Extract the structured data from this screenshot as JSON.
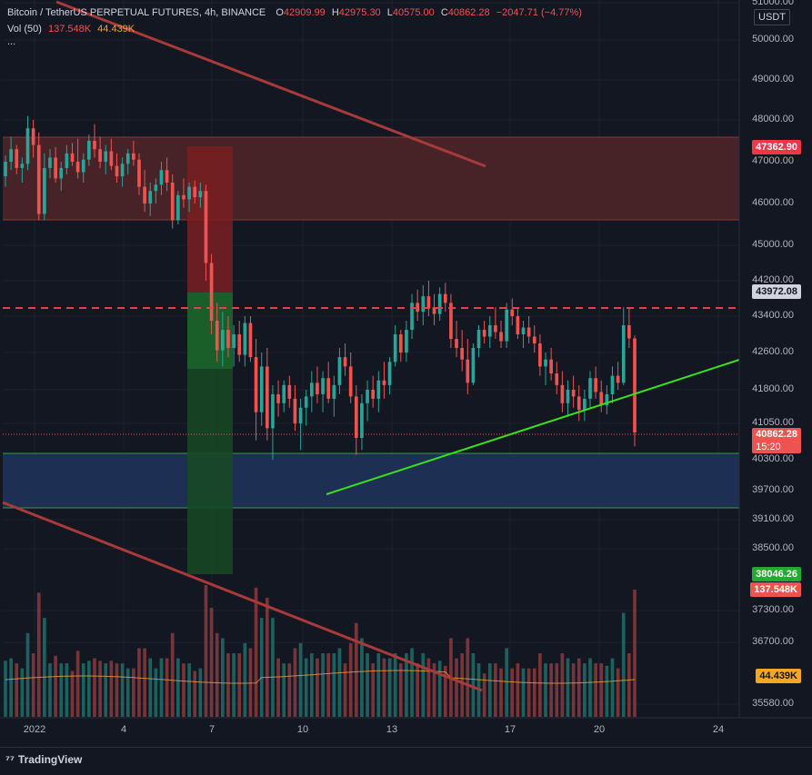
{
  "header": {
    "symbol": "Bitcoin / TetherUS PERPETUAL FUTURES, 4h, BINANCE",
    "o_label": "O",
    "o_value": "42909.99",
    "h_label": "H",
    "h_value": "42975.30",
    "l_label": "L",
    "l_value": "40575.00",
    "c_label": "C",
    "c_value": "40862.28",
    "change": "−2047.71 (−4.77%)",
    "vol_label": "Vol (50)",
    "vol_value": "137.548K",
    "vol_ma": "44.439K",
    "more": "..."
  },
  "currency": "USDT",
  "price_labels": {
    "zone_top": "47362.90",
    "dashed_level": "43972.08",
    "last_price": "40862.28",
    "countdown": "15:20",
    "target": "38046.26",
    "volume": "137.548K",
    "volume_ma": "44.439K"
  },
  "footer": {
    "brand": "TradingView",
    "logo_icon": "tradingview-logo-icon"
  },
  "colors": {
    "background": "#131722",
    "up": "#26a69a",
    "down": "#ef5350",
    "resistance_zone": "#5a2a2f",
    "support_zone": "#1f3358",
    "trendline_green": "#3ce01a",
    "trendline_red": "#a83a3a"
  },
  "chart_data": {
    "type": "candlestick",
    "title": "Bitcoin / TetherUS PERPETUAL FUTURES, 4h, BINANCE",
    "y_ticks": [
      "51000.00",
      "50000.00",
      "49000.00",
      "48000.00",
      "47000.00",
      "46000.00",
      "45000.00",
      "44200.00",
      "43400.00",
      "42600.00",
      "41800.00",
      "41050.00",
      "40300.00",
      "39700.00",
      "39100.00",
      "38500.00",
      "37300.00",
      "36700.00",
      "35580.00"
    ],
    "x_ticks": [
      "2022",
      "4",
      "7",
      "10",
      "13",
      "17",
      "20",
      "24"
    ],
    "ylim": [
      35400,
      51100
    ],
    "candles": [
      [
        46650,
        47150,
        46400,
        47000
      ],
      [
        47000,
        47600,
        46800,
        47300
      ],
      [
        47300,
        47400,
        46700,
        46850
      ],
      [
        46850,
        47100,
        46500,
        46950
      ],
      [
        46950,
        48100,
        46800,
        47800
      ],
      [
        47800,
        48000,
        47100,
        47400
      ],
      [
        47400,
        47700,
        45600,
        45750
      ],
      [
        45750,
        47200,
        45600,
        46850
      ],
      [
        46850,
        47300,
        46600,
        47100
      ],
      [
        47100,
        47350,
        46500,
        46600
      ],
      [
        46600,
        47000,
        46300,
        46850
      ],
      [
        46850,
        47400,
        46700,
        47200
      ],
      [
        47200,
        47450,
        46900,
        47000
      ],
      [
        47000,
        47550,
        46600,
        46750
      ],
      [
        46750,
        47200,
        46500,
        47050
      ],
      [
        47050,
        47650,
        46900,
        47500
      ],
      [
        47500,
        47900,
        47100,
        47300
      ],
      [
        47300,
        47600,
        46850,
        47000
      ],
      [
        47000,
        47400,
        46700,
        47250
      ],
      [
        47250,
        47550,
        46800,
        46900
      ],
      [
        46900,
        47200,
        46500,
        46650
      ],
      [
        46650,
        47100,
        46400,
        46950
      ],
      [
        46950,
        47300,
        46700,
        47200
      ],
      [
        47200,
        47500,
        46900,
        47050
      ],
      [
        47050,
        47200,
        46200,
        46400
      ],
      [
        46400,
        46800,
        45800,
        46000
      ],
      [
        46000,
        46500,
        45700,
        46300
      ],
      [
        46300,
        46600,
        46000,
        46450
      ],
      [
        46450,
        47000,
        46200,
        46800
      ],
      [
        46800,
        47100,
        46300,
        46500
      ],
      [
        46500,
        46700,
        45400,
        45600
      ],
      [
        45600,
        46300,
        45500,
        46200
      ],
      [
        46200,
        46600,
        45900,
        46100
      ],
      [
        46100,
        46500,
        45800,
        46400
      ],
      [
        46400,
        46550,
        46000,
        46150
      ],
      [
        46150,
        46500,
        45900,
        46300
      ],
      [
        46300,
        46450,
        44200,
        44600
      ],
      [
        44600,
        44800,
        43000,
        43300
      ],
      [
        43300,
        43700,
        42400,
        42650
      ],
      [
        42650,
        43500,
        42300,
        43100
      ],
      [
        43100,
        43400,
        42500,
        42700
      ],
      [
        42700,
        43200,
        42300,
        43000
      ],
      [
        43000,
        43300,
        42400,
        42550
      ],
      [
        42550,
        43400,
        42300,
        43250
      ],
      [
        43250,
        43400,
        42400,
        42500
      ],
      [
        42500,
        42900,
        40700,
        41300
      ],
      [
        41300,
        42600,
        41000,
        42300
      ],
      [
        42300,
        42700,
        40700,
        40950
      ],
      [
        40950,
        41900,
        40300,
        41700
      ],
      [
        41700,
        42000,
        41200,
        41500
      ],
      [
        41500,
        42000,
        41300,
        41900
      ],
      [
        41900,
        42100,
        41400,
        41600
      ],
      [
        41600,
        41900,
        40900,
        41050
      ],
      [
        41050,
        41600,
        40500,
        41400
      ],
      [
        41400,
        41800,
        41000,
        41650
      ],
      [
        41650,
        42200,
        41300,
        41950
      ],
      [
        41950,
        42300,
        41500,
        41700
      ],
      [
        41700,
        42200,
        41300,
        42050
      ],
      [
        42050,
        42400,
        41500,
        41600
      ],
      [
        41600,
        42100,
        41200,
        41900
      ],
      [
        41900,
        42700,
        41700,
        42500
      ],
      [
        42500,
        42800,
        42100,
        42300
      ],
      [
        42300,
        42600,
        41500,
        41650
      ],
      [
        41650,
        41900,
        40400,
        40750
      ],
      [
        40750,
        41700,
        40500,
        41500
      ],
      [
        41500,
        42000,
        41100,
        41800
      ],
      [
        41800,
        42100,
        41400,
        41600
      ],
      [
        41600,
        42200,
        41300,
        42000
      ],
      [
        42000,
        42400,
        41600,
        41900
      ],
      [
        41900,
        42500,
        41700,
        42400
      ],
      [
        42400,
        43200,
        42300,
        43000
      ],
      [
        43000,
        43100,
        42400,
        42600
      ],
      [
        42600,
        43300,
        42400,
        43100
      ],
      [
        43100,
        43900,
        42900,
        43700
      ],
      [
        43700,
        44000,
        43300,
        43500
      ],
      [
        43500,
        44100,
        43200,
        43850
      ],
      [
        43850,
        44200,
        43400,
        43600
      ],
      [
        43600,
        43900,
        43200,
        43450
      ],
      [
        43450,
        44050,
        43300,
        43900
      ],
      [
        43900,
        44150,
        43500,
        43700
      ],
      [
        43700,
        43900,
        42700,
        42900
      ],
      [
        42900,
        43300,
        42500,
        42700
      ],
      [
        42700,
        43100,
        42200,
        42450
      ],
      [
        42450,
        42900,
        41700,
        41950
      ],
      [
        41950,
        42800,
        41900,
        42700
      ],
      [
        42700,
        43200,
        42500,
        43100
      ],
      [
        43100,
        43300,
        42800,
        42950
      ],
      [
        42950,
        43400,
        42700,
        43200
      ],
      [
        43200,
        43600,
        42900,
        43050
      ],
      [
        43050,
        43300,
        42700,
        42850
      ],
      [
        42850,
        43700,
        42700,
        43550
      ],
      [
        43550,
        43800,
        43200,
        43400
      ],
      [
        43400,
        43600,
        42900,
        43000
      ],
      [
        43000,
        43300,
        42700,
        43150
      ],
      [
        43150,
        43400,
        42800,
        42950
      ],
      [
        42950,
        43200,
        42600,
        42800
      ],
      [
        42800,
        43000,
        42100,
        42300
      ],
      [
        42300,
        42600,
        41900,
        42450
      ],
      [
        42450,
        42700,
        42000,
        42150
      ],
      [
        42150,
        42400,
        41700,
        41900
      ],
      [
        41900,
        42200,
        41300,
        41500
      ],
      [
        41500,
        42000,
        41200,
        41800
      ],
      [
        41800,
        42100,
        41400,
        41650
      ],
      [
        41650,
        41900,
        41100,
        41350
      ],
      [
        41350,
        41800,
        41100,
        41600
      ],
      [
        41600,
        42200,
        41400,
        42050
      ],
      [
        42050,
        42300,
        41600,
        41750
      ],
      [
        41750,
        42000,
        41300,
        41450
      ],
      [
        41450,
        41900,
        41250,
        41700
      ],
      [
        41700,
        42300,
        41500,
        42100
      ],
      [
        42100,
        42400,
        41800,
        41950
      ],
      [
        41950,
        43600,
        41900,
        43200
      ],
      [
        43200,
        43600,
        42700,
        42910
      ],
      [
        42910,
        42975,
        40575,
        40862
      ]
    ],
    "volume_ma_value": "44.439K"
  }
}
